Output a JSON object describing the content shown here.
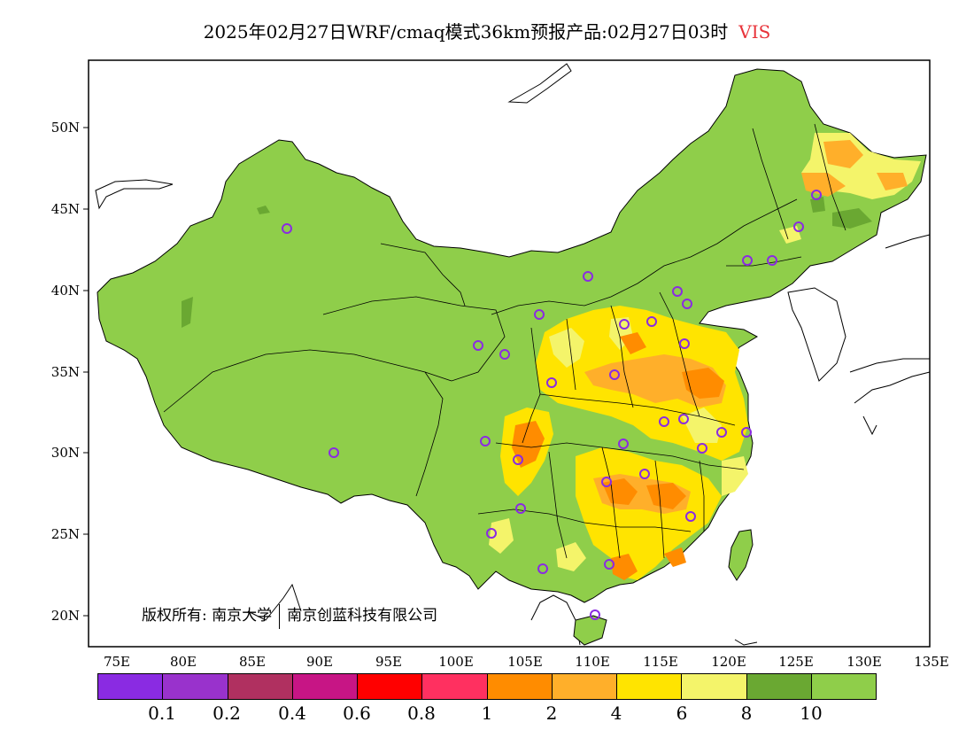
{
  "title": {
    "main": "2025年02月27日WRF/cmaq模式36km预报产品:02月27日03时",
    "variable": "VIS"
  },
  "map": {
    "lat_labels": [
      "50N",
      "45N",
      "40N",
      "35N",
      "30N",
      "25N",
      "20N"
    ],
    "lon_labels": [
      "75E",
      "80E",
      "85E",
      "90E",
      "95E",
      "100E",
      "105E",
      "110E",
      "115E",
      "120E",
      "125E",
      "130E",
      "135E"
    ],
    "copyright_left": "版权所有: 南京大学",
    "copyright_right": "南京创蓝科技有限公司",
    "colors": {
      "base_land": "#8fce4a",
      "dark_green": "#6aa832",
      "light_yellow": "#f4f46a",
      "yellow": "#ffe400",
      "light_orange": "#ffaf2a",
      "orange": "#ff8c00",
      "station_marker": "#8a2be2"
    }
  },
  "colorbar": {
    "colors": [
      "#8a2be2",
      "#9932cc",
      "#b03060",
      "#c71585",
      "#ff0000",
      "#ff3060",
      "#ff8c00",
      "#ffaf2a",
      "#ffe400",
      "#f4f46a",
      "#6aa832",
      "#8fce4a"
    ],
    "labels": [
      "0.1",
      "0.2",
      "0.4",
      "0.6",
      "0.8",
      "1",
      "2",
      "4",
      "6",
      "8",
      "10"
    ]
  }
}
